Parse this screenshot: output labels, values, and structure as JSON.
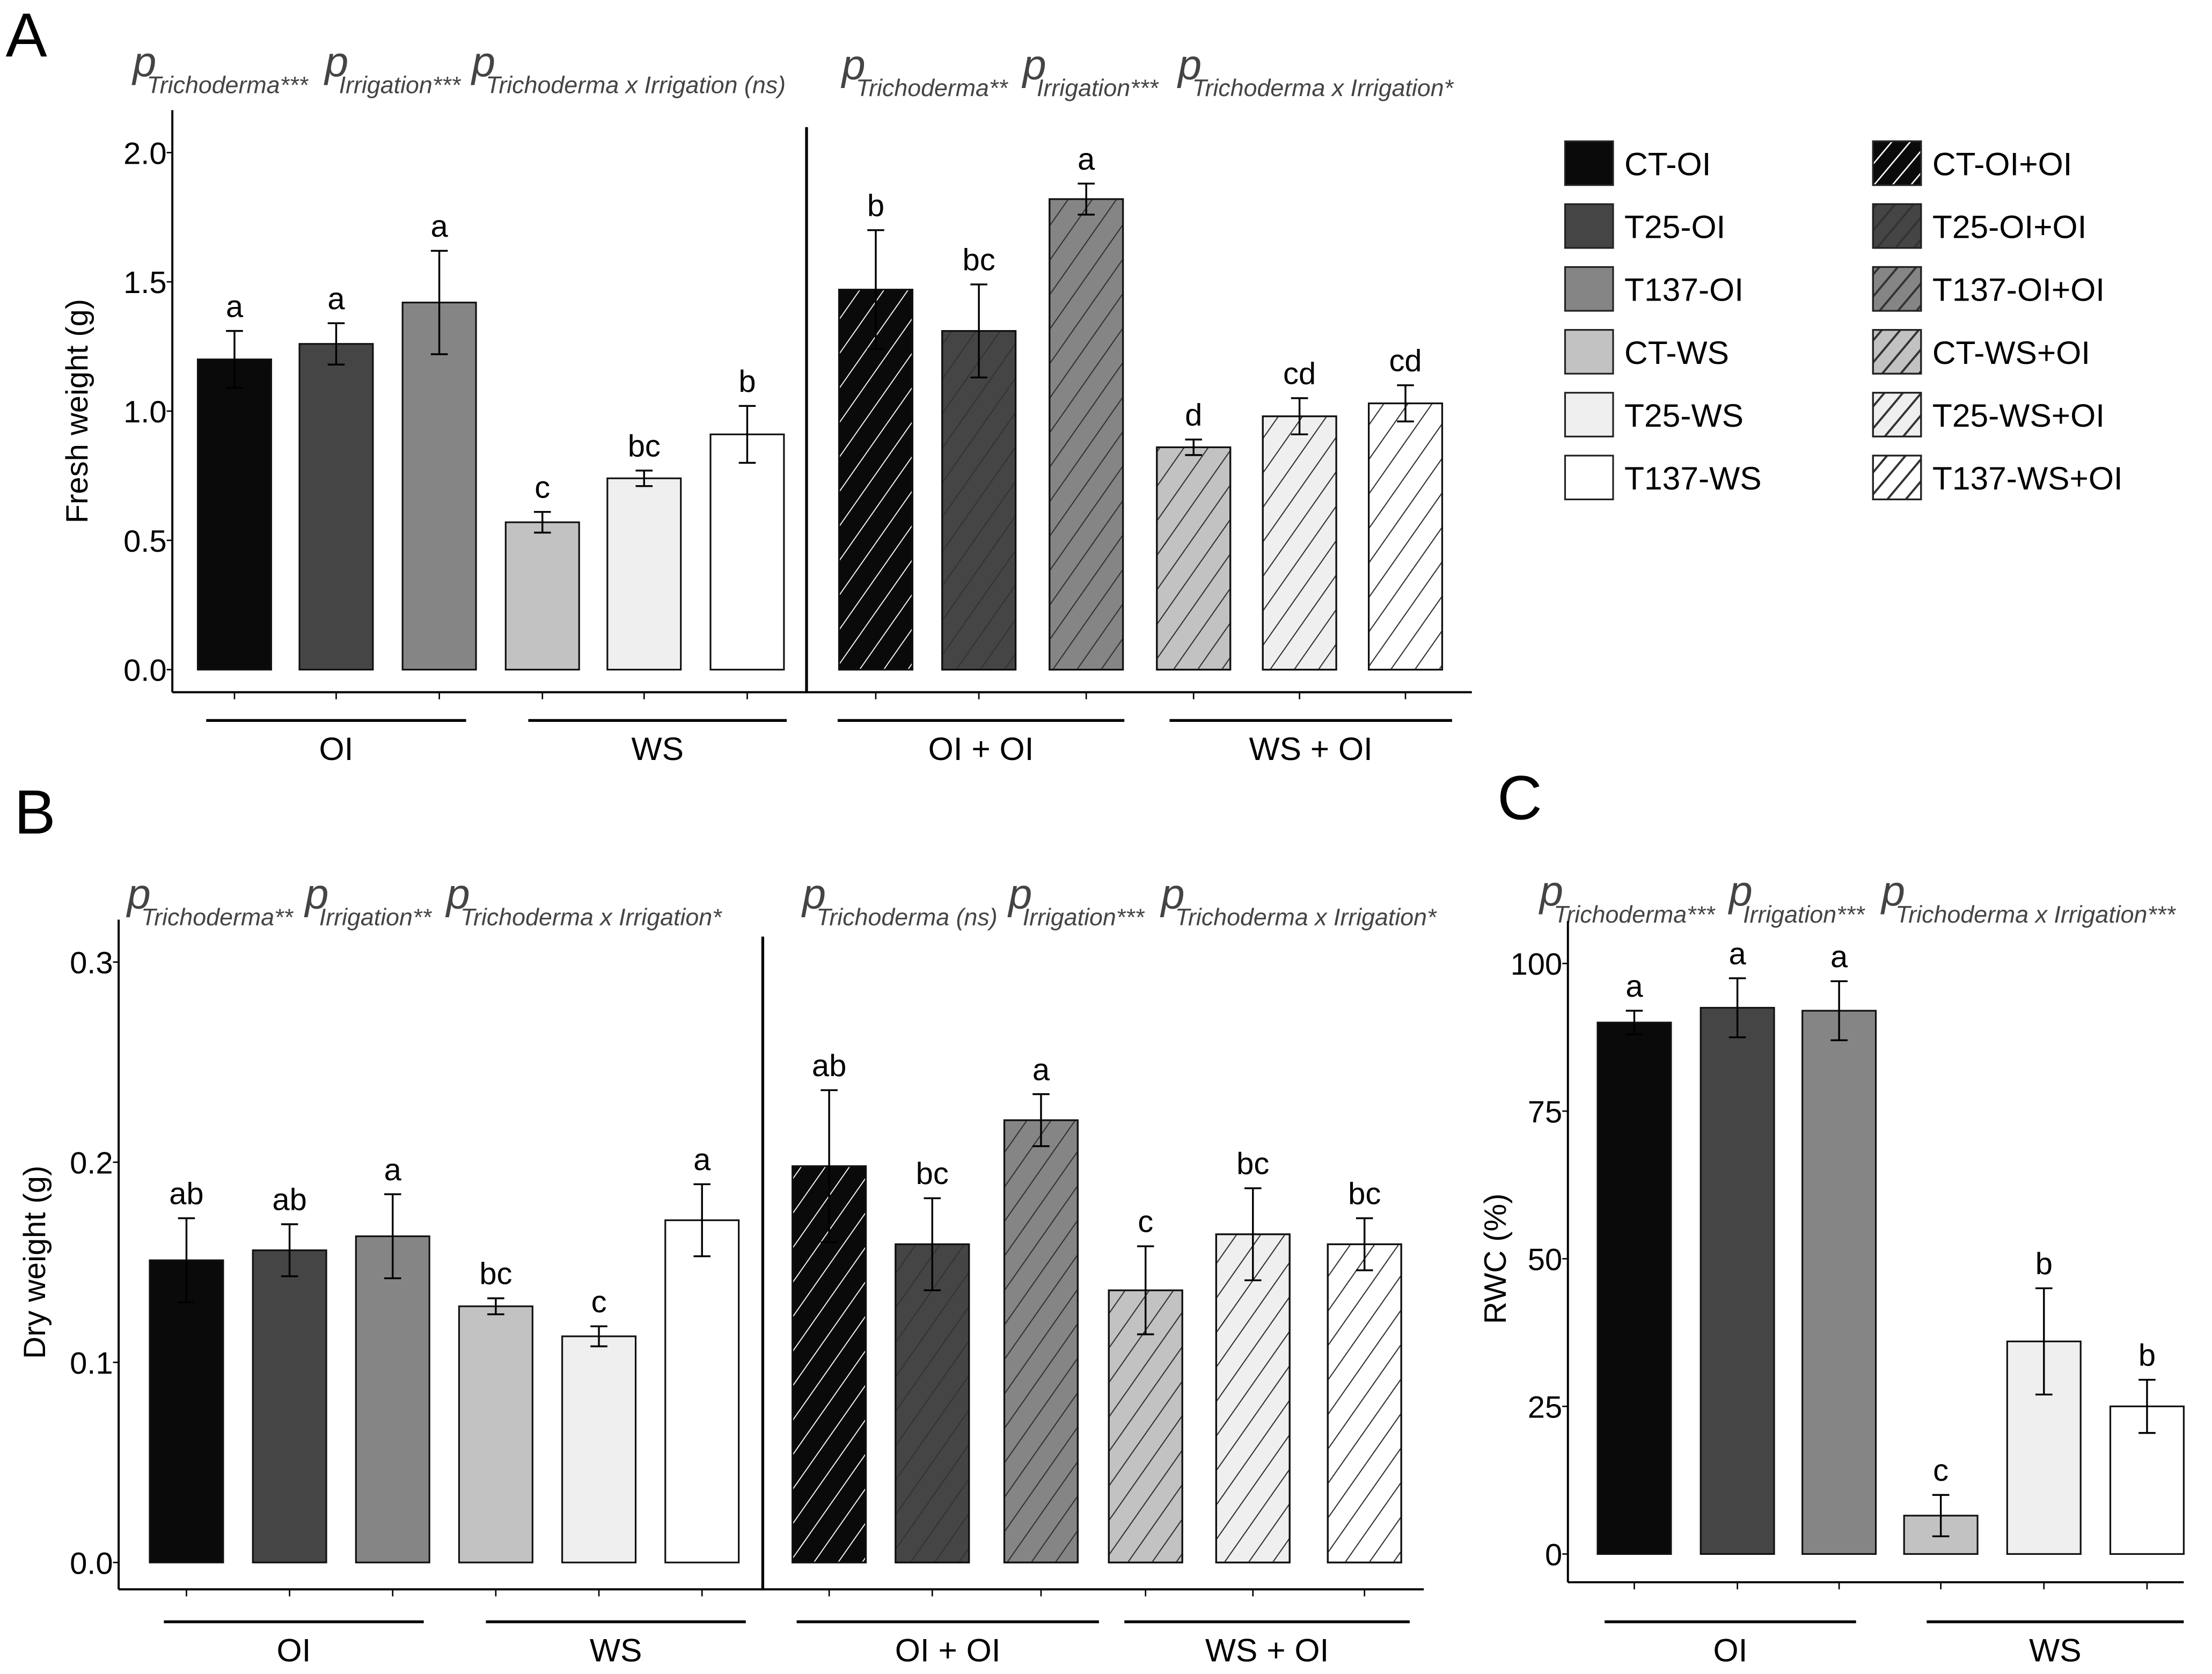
{
  "legend": [
    {
      "label": "CT-OI",
      "fill": "#0a0a0a",
      "hatch": false
    },
    {
      "label": "T25-OI",
      "fill": "#454545",
      "hatch": false
    },
    {
      "label": "T137-OI",
      "fill": "#858585",
      "hatch": false
    },
    {
      "label": "CT-WS",
      "fill": "#c2c2c2",
      "hatch": false
    },
    {
      "label": "T25-WS",
      "fill": "#efefef",
      "hatch": false
    },
    {
      "label": "T137-WS",
      "fill": "#ffffff",
      "hatch": false
    },
    {
      "label": "CT-OI+OI",
      "fill": "#0a0a0a",
      "hatch": true
    },
    {
      "label": "T25-OI+OI",
      "fill": "#454545",
      "hatch": true
    },
    {
      "label": "T137-OI+OI",
      "fill": "#858585",
      "hatch": true
    },
    {
      "label": "CT-WS+OI",
      "fill": "#c2c2c2",
      "hatch": true
    },
    {
      "label": "T25-WS+OI",
      "fill": "#efefef",
      "hatch": true
    },
    {
      "label": "T137-WS+OI",
      "fill": "#ffffff",
      "hatch": true
    }
  ],
  "chart_data": [
    {
      "panel": "A",
      "type": "bar",
      "ylabel": "Fresh weight (g)",
      "ylim": [
        0,
        2.0
      ],
      "yticks": [
        "0.0",
        "0.5",
        "1.0",
        "1.5",
        "2.0"
      ],
      "groups": [
        "OI",
        "WS",
        "OI + OI",
        "WS + OI"
      ],
      "pvalues": [
        [
          [
            "Trichoderma",
            "***"
          ],
          [
            "Irrigation",
            "***"
          ],
          [
            "Trichoderma x Irrigation",
            " (ns)"
          ]
        ],
        [
          [
            "Trichoderma",
            "**"
          ],
          [
            "Irrigation",
            "***"
          ],
          [
            "Trichoderma x Irrigation",
            "*"
          ]
        ]
      ],
      "values": [
        1.2,
        1.26,
        1.42,
        0.57,
        0.74,
        0.91,
        1.47,
        1.31,
        1.82,
        0.86,
        0.98,
        1.03
      ],
      "errors": [
        0.11,
        0.08,
        0.2,
        0.04,
        0.03,
        0.11,
        0.23,
        0.18,
        0.06,
        0.03,
        0.07,
        0.07
      ],
      "letters": [
        "a",
        "a",
        "a",
        "c",
        "bc",
        "b",
        "b",
        "bc",
        "a",
        "d",
        "cd",
        "cd"
      ]
    },
    {
      "panel": "B",
      "type": "bar",
      "ylabel": "Dry weight (g)",
      "ylim": [
        0,
        0.3
      ],
      "yticks": [
        "0.0",
        "0.1",
        "0.2",
        "0.3"
      ],
      "groups": [
        "OI",
        "WS",
        "OI + OI",
        "WS + OI"
      ],
      "pvalues": [
        [
          [
            "Trichoderma",
            "**"
          ],
          [
            "Irrigation",
            "**"
          ],
          [
            "Trichoderma x Irrigation",
            "*"
          ]
        ],
        [
          [
            "Trichoderma",
            " (ns)"
          ],
          [
            "Irrigation",
            "***"
          ],
          [
            "Trichoderma x Irrigation",
            "*"
          ]
        ]
      ],
      "values": [
        0.151,
        0.156,
        0.163,
        0.128,
        0.113,
        0.171,
        0.198,
        0.159,
        0.221,
        0.136,
        0.164,
        0.159
      ],
      "errors": [
        0.021,
        0.013,
        0.021,
        0.004,
        0.005,
        0.018,
        0.038,
        0.023,
        0.013,
        0.022,
        0.023,
        0.013
      ],
      "letters": [
        "ab",
        "ab",
        "a",
        "bc",
        "c",
        "a",
        "ab",
        "bc",
        "a",
        "c",
        "bc",
        "bc"
      ]
    },
    {
      "panel": "C",
      "type": "bar",
      "ylabel": "RWC (%)",
      "ylim": [
        0,
        100
      ],
      "yticks": [
        "0",
        "25",
        "50",
        "75",
        "100"
      ],
      "groups": [
        "OI",
        "WS"
      ],
      "pvalues": [
        [
          [
            "Trichoderma",
            "***"
          ],
          [
            "Irrigation",
            "***"
          ],
          [
            "Trichoderma x Irrigation",
            "***"
          ]
        ]
      ],
      "values": [
        90,
        92.5,
        92,
        6.5,
        36,
        25
      ],
      "errors": [
        2,
        5,
        5,
        3.5,
        9,
        4.5
      ],
      "letters": [
        "a",
        "a",
        "a",
        "c",
        "b",
        "b"
      ]
    }
  ]
}
